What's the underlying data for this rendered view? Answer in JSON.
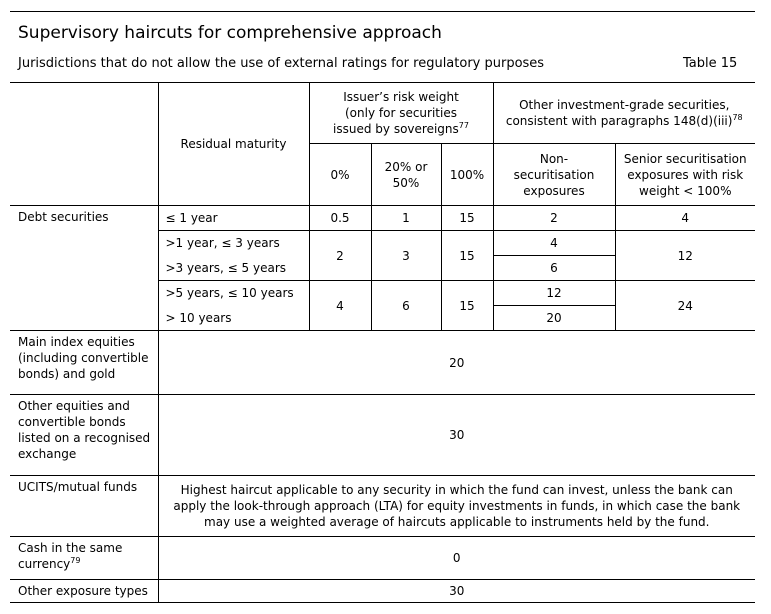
{
  "header": {
    "title": "Supervisory haircuts for comprehensive approach",
    "subtitle": "Jurisdictions that do not allow the use of external ratings for regulatory purposes",
    "table_number": "Table 15"
  },
  "columns": {
    "residual_maturity": "Residual maturity",
    "issuer_group": "Issuer’s risk weight (only for securities issued by sovereigns",
    "issuer_group_footnote": "77",
    "ig_group": "Other investment-grade securities, consistent with paragraphs 148(d)(iii)",
    "ig_group_footnote": "78",
    "rw_0": "0%",
    "rw_20_50": "20% or 50%",
    "rw_100": "100%",
    "non_sec": "Non-securitisation exposures",
    "senior_sec": "Senior securitisation exposures with risk weight < 100%"
  },
  "debt": {
    "label": "Debt securities",
    "maturities": [
      "≤ 1 year",
      ">1 year, ≤ 3 years",
      ">3 years, ≤ 5 years",
      ">5 years, ≤ 10 years",
      "> 10 years"
    ],
    "g1": {
      "rw0": "0.5",
      "rw2050": "1",
      "rw100": "15",
      "nonsec": "2",
      "senior": "4"
    },
    "g2": {
      "rw0": "2",
      "rw2050": "3",
      "rw100": "15",
      "nonsec_a": "4",
      "nonsec_b": "6",
      "senior": "12"
    },
    "g3": {
      "rw0": "4",
      "rw2050": "6",
      "rw100": "15",
      "nonsec_a": "12",
      "nonsec_b": "20",
      "senior": "24"
    }
  },
  "rows": {
    "main_index_label": "Main index equities (including convertible bonds) and gold",
    "main_index_value": "20",
    "other_equities_label": "Other equities and convertible bonds listed on a recognised exchange",
    "other_equities_value": "30",
    "ucits_label": "UCITS/mutual funds",
    "ucits_text": "Highest haircut applicable to any security in which the fund can invest, unless the bank can apply the look-through approach (LTA) for equity investments in funds, in which case the bank may use a weighted average of haircuts applicable to instruments held by the fund.",
    "cash_label": "Cash in the same currency",
    "cash_footnote": "79",
    "cash_value": "0",
    "other_exposure_label": "Other exposure types",
    "other_exposure_value": "30"
  }
}
